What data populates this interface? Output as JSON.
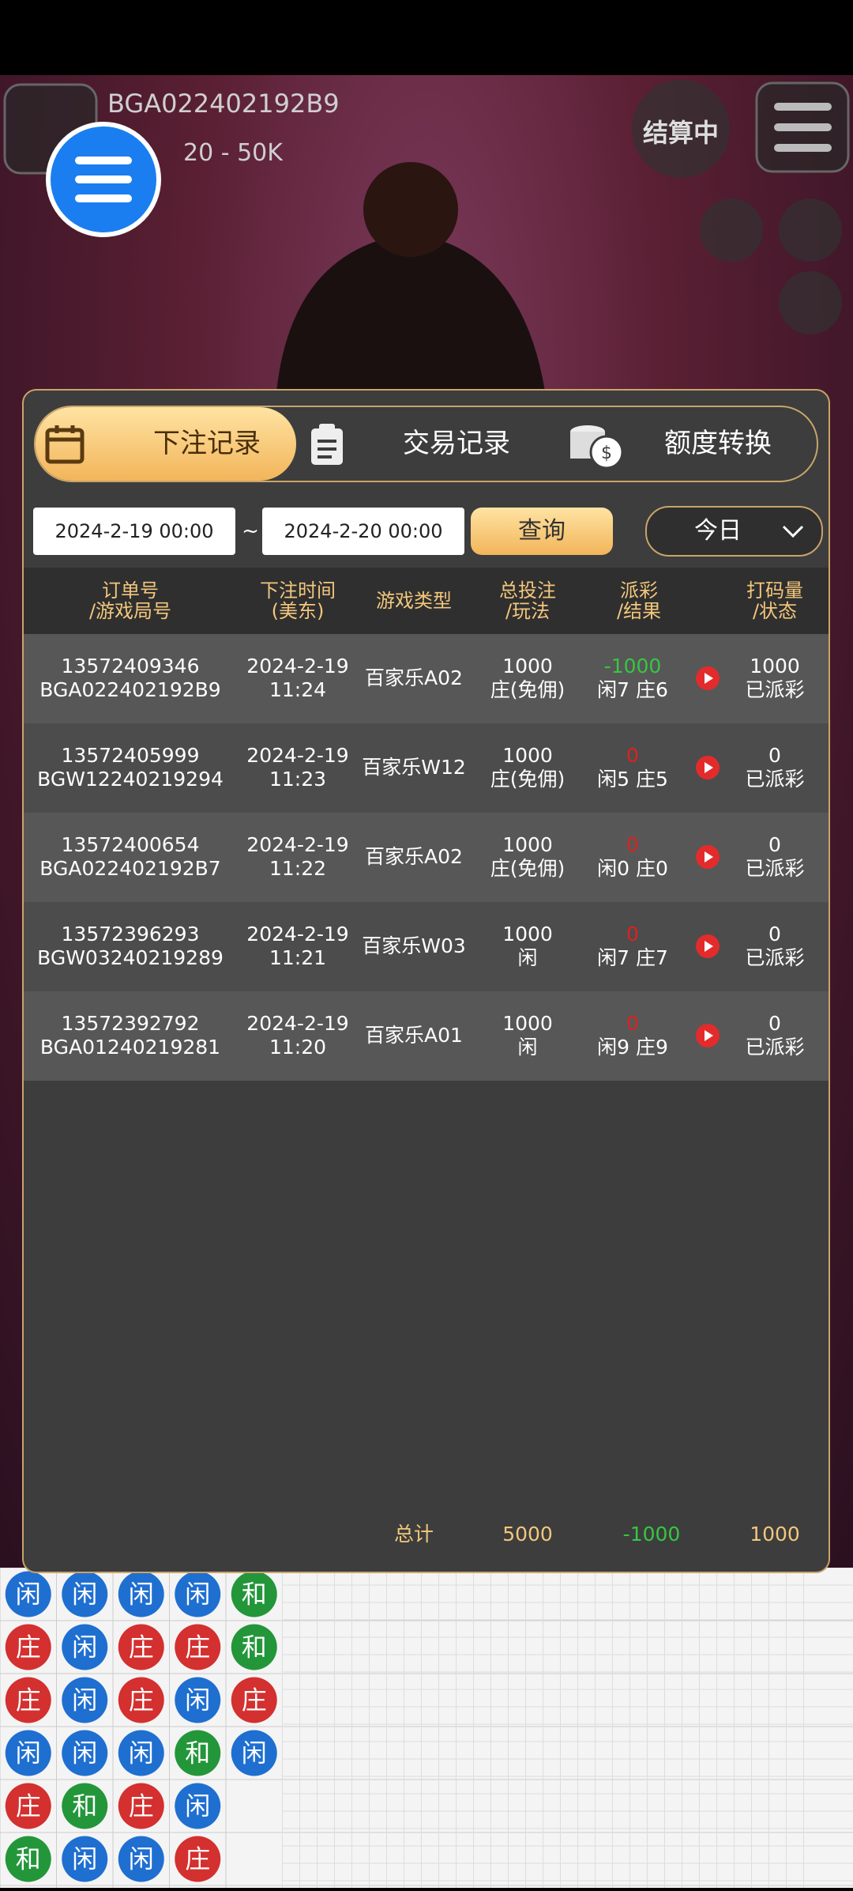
{
  "header": {
    "table_id": "BGA022402192B9",
    "limit": "20 - 50K",
    "status": "结算中"
  },
  "tabs": [
    "下注记录",
    "交易记录",
    "额度转换"
  ],
  "filters": {
    "date_from": "2024-2-19 00:00",
    "separator": "~",
    "date_to": "2024-2-20 00:00",
    "query": "查询",
    "range": "今日"
  },
  "table": {
    "columns": [
      {
        "line1": "订单号",
        "line2": "/游戏局号"
      },
      {
        "line1": "下注时间",
        "line2": "(美东)"
      },
      {
        "line1": "游戏类型"
      },
      {
        "line1": "总投注",
        "line2": "/玩法"
      },
      {
        "line1": "派彩",
        "line2": "/结果"
      },
      {
        "line1": "打码量",
        "line2": "/状态"
      }
    ],
    "rows": [
      {
        "order": "13572409346",
        "round": "BGA022402192B9",
        "date": "2024-2-19",
        "time": "11:24",
        "game": "百家乐A02",
        "bet": 1000,
        "play": "庄(免佣)",
        "payout": -1000,
        "result": "闲7 庄6",
        "turnover": 1000,
        "status": "已派彩"
      },
      {
        "order": "13572405999",
        "round": "BGW12240219294",
        "date": "2024-2-19",
        "time": "11:23",
        "game": "百家乐W12",
        "bet": 1000,
        "play": "庄(免佣)",
        "payout": 0,
        "result": "闲5 庄5",
        "turnover": 0,
        "status": "已派彩"
      },
      {
        "order": "13572400654",
        "round": "BGA022402192B7",
        "date": "2024-2-19",
        "time": "11:22",
        "game": "百家乐A02",
        "bet": 1000,
        "play": "庄(免佣)",
        "payout": 0,
        "result": "闲0 庄0",
        "turnover": 0,
        "status": "已派彩"
      },
      {
        "order": "13572396293",
        "round": "BGW03240219289",
        "date": "2024-2-19",
        "time": "11:21",
        "game": "百家乐W03",
        "bet": 1000,
        "play": "闲",
        "payout": 0,
        "result": "闲7 庄7",
        "turnover": 0,
        "status": "已派彩"
      },
      {
        "order": "13572392792",
        "round": "BGA01240219281",
        "date": "2024-2-19",
        "time": "11:20",
        "game": "百家乐A01",
        "bet": 1000,
        "play": "闲",
        "payout": 0,
        "result": "闲9 庄9",
        "turnover": 0,
        "status": "已派彩"
      }
    ],
    "totals": {
      "label": "总计",
      "bet": 5000,
      "payout": -1000,
      "turnover": 1000
    }
  },
  "bead_road": {
    "colors": {
      "闲": "#1f6fd1",
      "庄": "#d3302f",
      "和": "#23963a"
    },
    "rows": [
      [
        "闲",
        "闲",
        "闲",
        "闲",
        "和"
      ],
      [
        "庄",
        "闲",
        "庄",
        "庄",
        "和"
      ],
      [
        "庄",
        "闲",
        "庄",
        "闲",
        "庄"
      ],
      [
        "闲",
        "闲",
        "闲",
        "和",
        "闲"
      ],
      [
        "庄",
        "和",
        "庄",
        "闲"
      ],
      [
        "和",
        "闲",
        "闲",
        "庄"
      ]
    ]
  }
}
